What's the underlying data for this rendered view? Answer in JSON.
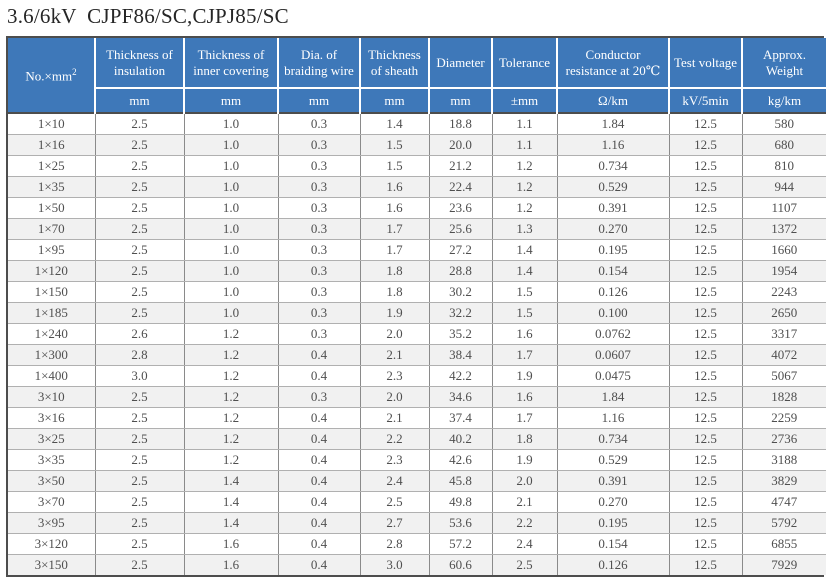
{
  "title": "3.6/6kV  CJPF86/SC,CJPJ85/SC",
  "colors": {
    "header_bg": "#3e78b9",
    "header_text": "#ffffff",
    "row_alt_bg": "#f1f1f1",
    "body_text": "#4f4f4f",
    "outer_border": "#4d4d4d",
    "inner_border": "#8a8a8a",
    "title_text": "#262626"
  },
  "table": {
    "corner": {
      "text": "No.×mm",
      "sup": "2"
    },
    "columns": [
      {
        "label": "Thickness of insulation",
        "unit": "mm"
      },
      {
        "label": "Thickness of inner covering",
        "unit": "mm"
      },
      {
        "label": "Dia. of braiding wire",
        "unit": "mm"
      },
      {
        "label": "Thickness of sheath",
        "unit": "mm"
      },
      {
        "label": "Diameter",
        "unit": "mm"
      },
      {
        "label": "Tolerance",
        "unit": "±mm"
      },
      {
        "label": "Conductor resistance at 20℃",
        "unit": "Ω/km"
      },
      {
        "label": "Test voltage",
        "unit": "kV/5min"
      },
      {
        "label": "Approx. Weight",
        "unit": "kg/km"
      }
    ],
    "rows": [
      [
        "1×10",
        "2.5",
        "1.0",
        "0.3",
        "1.4",
        "18.8",
        "1.1",
        "1.84",
        "12.5",
        "580"
      ],
      [
        "1×16",
        "2.5",
        "1.0",
        "0.3",
        "1.5",
        "20.0",
        "1.1",
        "1.16",
        "12.5",
        "680"
      ],
      [
        "1×25",
        "2.5",
        "1.0",
        "0.3",
        "1.5",
        "21.2",
        "1.2",
        "0.734",
        "12.5",
        "810"
      ],
      [
        "1×35",
        "2.5",
        "1.0",
        "0.3",
        "1.6",
        "22.4",
        "1.2",
        "0.529",
        "12.5",
        "944"
      ],
      [
        "1×50",
        "2.5",
        "1.0",
        "0.3",
        "1.6",
        "23.6",
        "1.2",
        "0.391",
        "12.5",
        "1107"
      ],
      [
        "1×70",
        "2.5",
        "1.0",
        "0.3",
        "1.7",
        "25.6",
        "1.3",
        "0.270",
        "12.5",
        "1372"
      ],
      [
        "1×95",
        "2.5",
        "1.0",
        "0.3",
        "1.7",
        "27.2",
        "1.4",
        "0.195",
        "12.5",
        "1660"
      ],
      [
        "1×120",
        "2.5",
        "1.0",
        "0.3",
        "1.8",
        "28.8",
        "1.4",
        "0.154",
        "12.5",
        "1954"
      ],
      [
        "1×150",
        "2.5",
        "1.0",
        "0.3",
        "1.8",
        "30.2",
        "1.5",
        "0.126",
        "12.5",
        "2243"
      ],
      [
        "1×185",
        "2.5",
        "1.0",
        "0.3",
        "1.9",
        "32.2",
        "1.5",
        "0.100",
        "12.5",
        "2650"
      ],
      [
        "1×240",
        "2.6",
        "1.2",
        "0.3",
        "2.0",
        "35.2",
        "1.6",
        "0.0762",
        "12.5",
        "3317"
      ],
      [
        "1×300",
        "2.8",
        "1.2",
        "0.4",
        "2.1",
        "38.4",
        "1.7",
        "0.0607",
        "12.5",
        "4072"
      ],
      [
        "1×400",
        "3.0",
        "1.2",
        "0.4",
        "2.3",
        "42.2",
        "1.9",
        "0.0475",
        "12.5",
        "5067"
      ],
      [
        "3×10",
        "2.5",
        "1.2",
        "0.3",
        "2.0",
        "34.6",
        "1.6",
        "1.84",
        "12.5",
        "1828"
      ],
      [
        "3×16",
        "2.5",
        "1.2",
        "0.4",
        "2.1",
        "37.4",
        "1.7",
        "1.16",
        "12.5",
        "2259"
      ],
      [
        "3×25",
        "2.5",
        "1.2",
        "0.4",
        "2.2",
        "40.2",
        "1.8",
        "0.734",
        "12.5",
        "2736"
      ],
      [
        "3×35",
        "2.5",
        "1.2",
        "0.4",
        "2.3",
        "42.6",
        "1.9",
        "0.529",
        "12.5",
        "3188"
      ],
      [
        "3×50",
        "2.5",
        "1.4",
        "0.4",
        "2.4",
        "45.8",
        "2.0",
        "0.391",
        "12.5",
        "3829"
      ],
      [
        "3×70",
        "2.5",
        "1.4",
        "0.4",
        "2.5",
        "49.8",
        "2.1",
        "0.270",
        "12.5",
        "4747"
      ],
      [
        "3×95",
        "2.5",
        "1.4",
        "0.4",
        "2.7",
        "53.6",
        "2.2",
        "0.195",
        "12.5",
        "5792"
      ],
      [
        "3×120",
        "2.5",
        "1.6",
        "0.4",
        "2.8",
        "57.2",
        "2.4",
        "0.154",
        "12.5",
        "6855"
      ],
      [
        "3×150",
        "2.5",
        "1.6",
        "0.4",
        "3.0",
        "60.6",
        "2.5",
        "0.126",
        "12.5",
        "7929"
      ]
    ]
  }
}
